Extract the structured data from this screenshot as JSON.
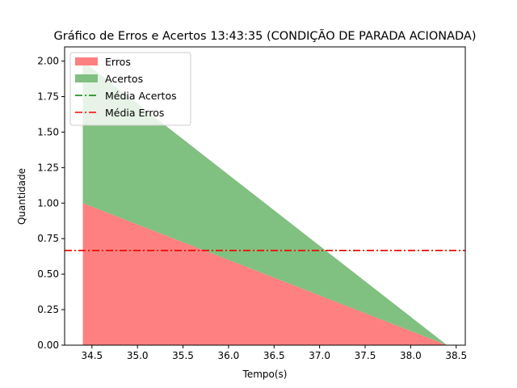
{
  "chart_data": {
    "type": "area",
    "title": "Gráfico de Erros e Acertos 13:43:35 (CONDIÇÃO DE PARADA ACIONADA)",
    "xlabel": "Tempo(s)",
    "ylabel": "Quantidade",
    "xlim": [
      34.2,
      38.6
    ],
    "ylim": [
      0,
      2.1
    ],
    "x_ticks": [
      "34.5",
      "35.0",
      "35.5",
      "36.0",
      "36.5",
      "37.0",
      "37.5",
      "38.0",
      "38.5"
    ],
    "y_ticks": [
      "0.00",
      "0.25",
      "0.50",
      "0.75",
      "1.00",
      "1.25",
      "1.50",
      "1.75",
      "2.00"
    ],
    "grid": false,
    "legend_position": "upper-left",
    "x": [
      34.4,
      38.4
    ],
    "series": [
      {
        "name": "Erros",
        "kind": "stacked-area",
        "values": [
          1.0,
          0.0
        ],
        "color": "#ff8080"
      },
      {
        "name": "Acertos",
        "kind": "stacked-area",
        "values": [
          1.0,
          0.0
        ],
        "color": "#80c080"
      },
      {
        "name": "Média Acertos",
        "kind": "hline",
        "value": 0.6667,
        "color": "#008000",
        "style": "dashdot"
      },
      {
        "name": "Média Erros",
        "kind": "hline",
        "value": 0.6667,
        "color": "#ff0000",
        "style": "dashdot"
      }
    ]
  }
}
